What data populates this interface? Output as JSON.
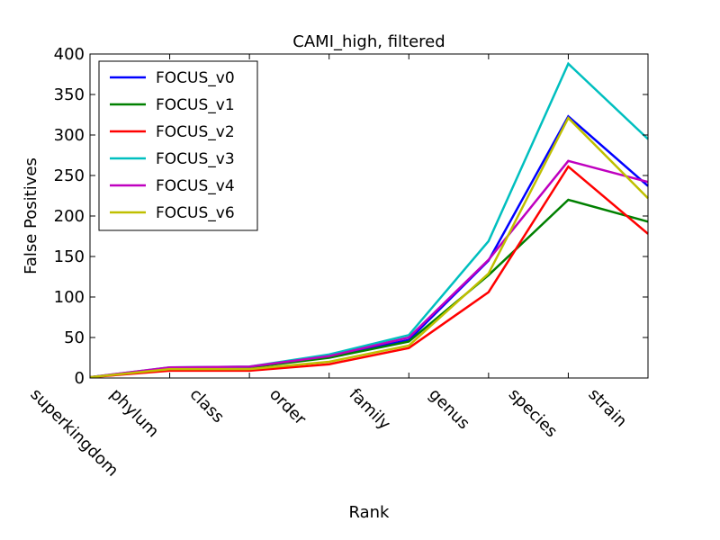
{
  "chart_data": {
    "type": "line",
    "title": "CAMI_high, filtered",
    "xlabel": "Rank",
    "ylabel": "False Positives",
    "categories": [
      "superkingdom",
      "phylum",
      "class",
      "order",
      "family",
      "genus",
      "species",
      "strain"
    ],
    "ylim": [
      0,
      400
    ],
    "yticks": [
      0,
      50,
      100,
      150,
      200,
      250,
      300,
      350,
      400
    ],
    "grid": false,
    "legend_position": "top-left",
    "series": [
      {
        "name": "FOCUS_v0",
        "color": "#0000ff",
        "values": [
          1,
          12,
          13,
          26,
          47,
          145,
          323,
          237
        ]
      },
      {
        "name": "FOCUS_v1",
        "color": "#008000",
        "values": [
          1,
          12,
          13,
          25,
          45,
          127,
          220,
          193
        ]
      },
      {
        "name": "FOCUS_v2",
        "color": "#ff0000",
        "values": [
          1,
          9,
          9,
          17,
          37,
          106,
          261,
          178
        ]
      },
      {
        "name": "FOCUS_v3",
        "color": "#00bfbf",
        "values": [
          1,
          13,
          14,
          29,
          53,
          169,
          388,
          295
        ]
      },
      {
        "name": "FOCUS_v4",
        "color": "#bf00bf",
        "values": [
          1,
          13,
          14,
          27,
          50,
          146,
          268,
          242
        ]
      },
      {
        "name": "FOCUS_v6",
        "color": "#bfbf00",
        "values": [
          1,
          11,
          11,
          20,
          40,
          129,
          321,
          222
        ]
      }
    ]
  }
}
